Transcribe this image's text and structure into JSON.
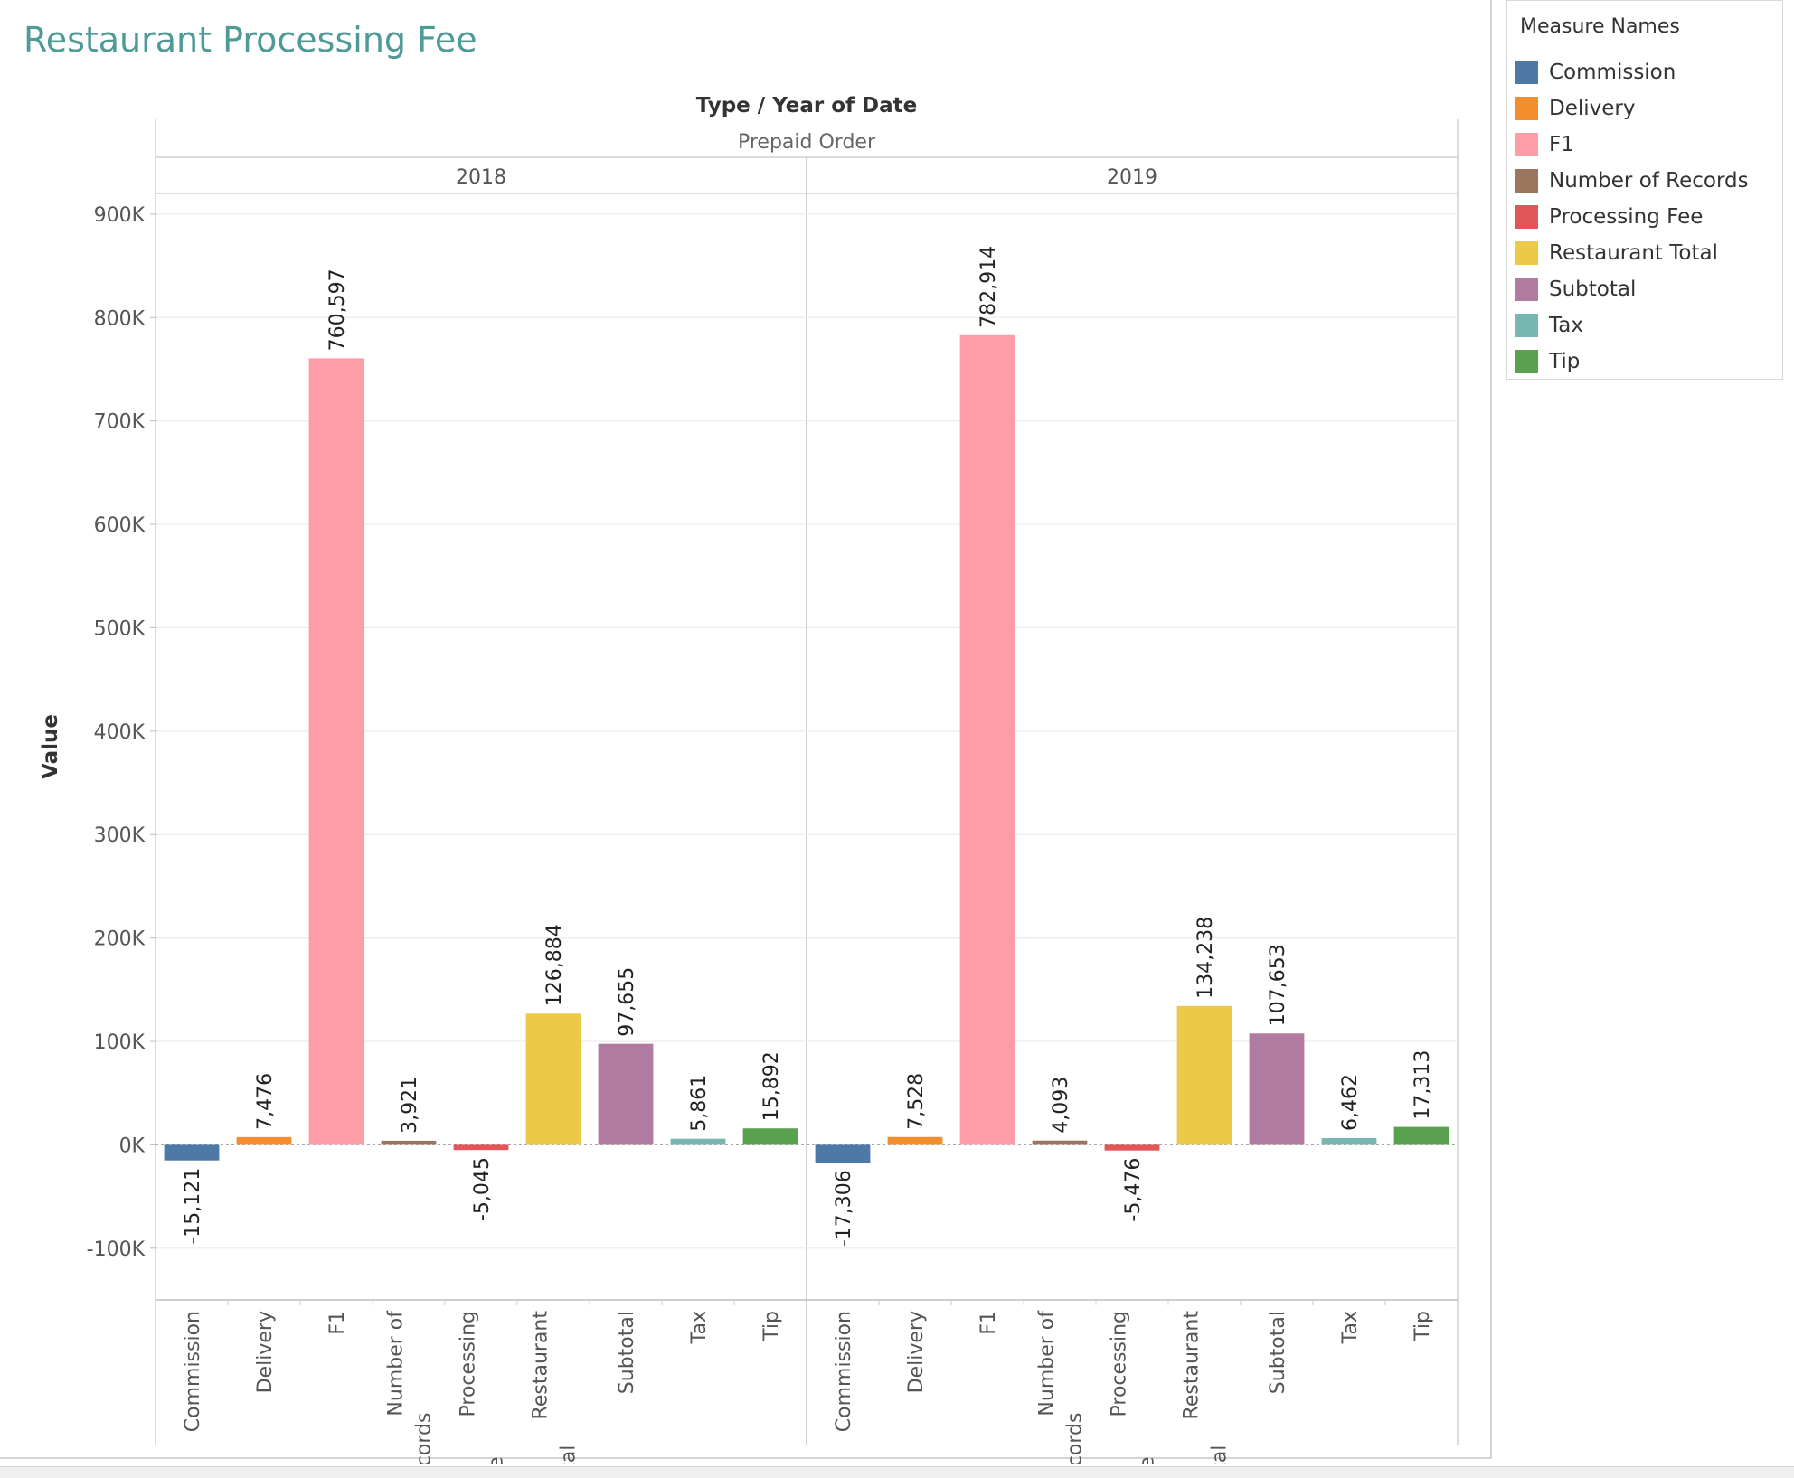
{
  "title": "Restaurant Processing Fee",
  "chart_data": {
    "type": "bar",
    "header_title": "Type  /  Year of Date",
    "header_group": "Prepaid Order",
    "panels": [
      "2018",
      "2019"
    ],
    "categories": [
      "Commission",
      "Delivery",
      "F1",
      "Number of Records",
      "Processing Fee",
      "Restaurant Total",
      "Subtotal",
      "Tax",
      "Tip"
    ],
    "category_tick_lines": [
      [
        "Commission"
      ],
      [
        "Delivery"
      ],
      [
        "F1"
      ],
      [
        "Number of",
        "Records"
      ],
      [
        "Processing",
        "Fee"
      ],
      [
        "Restaurant",
        "Total"
      ],
      [
        "Subtotal"
      ],
      [
        "Tax"
      ],
      [
        "Tip"
      ]
    ],
    "colors": [
      "#4e79a7",
      "#f28e2b",
      "#ff9da7",
      "#9c755f",
      "#e15759",
      "#edc948",
      "#b07aa1",
      "#76b7b2",
      "#59a14f"
    ],
    "series": [
      {
        "values": [
          -15121,
          7476,
          760597,
          3921,
          -5045,
          126884,
          97655,
          5861,
          15892
        ]
      },
      {
        "values": [
          -17306,
          7528,
          782914,
          4093,
          -5476,
          134238,
          107653,
          6462,
          17313
        ]
      }
    ],
    "value_labels": [
      [
        "-15,121",
        "7,476",
        "760,597",
        "3,921",
        "-5,045",
        "126,884",
        "97,655",
        "5,861",
        "15,892"
      ],
      [
        "-17,306",
        "7,528",
        "782,914",
        "4,093",
        "-5,476",
        "134,238",
        "107,653",
        "6,462",
        "17,313"
      ]
    ],
    "ylabel": "Value",
    "ylim": [
      -150000,
      920000
    ],
    "yticks": [
      -100000,
      0,
      100000,
      200000,
      300000,
      400000,
      500000,
      600000,
      700000,
      800000,
      900000
    ],
    "ytick_labels": [
      "-100K",
      "0K",
      "100K",
      "200K",
      "300K",
      "400K",
      "500K",
      "600K",
      "700K",
      "800K",
      "900K"
    ],
    "grid": true,
    "legend_placement": "top-right"
  },
  "legend": {
    "title": "Measure Names",
    "items": [
      {
        "label": "Commission",
        "color": "#4e79a7"
      },
      {
        "label": "Delivery",
        "color": "#f28e2b"
      },
      {
        "label": "F1",
        "color": "#ff9da7"
      },
      {
        "label": "Number of Records",
        "color": "#9c755f"
      },
      {
        "label": "Processing Fee",
        "color": "#e15759"
      },
      {
        "label": "Restaurant Total",
        "color": "#edc948"
      },
      {
        "label": "Subtotal",
        "color": "#b07aa1"
      },
      {
        "label": "Tax",
        "color": "#76b7b2"
      },
      {
        "label": "Tip",
        "color": "#59a14f"
      }
    ]
  }
}
